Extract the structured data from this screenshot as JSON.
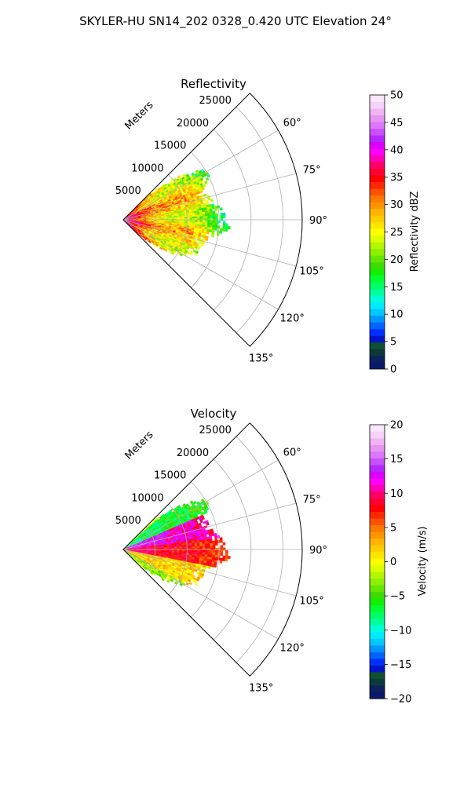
{
  "figure": {
    "suptitle": "SKYLER-HU  SN14_202  0328_0.420 UTC Elevation 24°"
  },
  "chart_data": [
    {
      "type": "heatmap",
      "projection": "polar-sector",
      "title": "Reflectivity",
      "radial_axis_label": "Meters",
      "radial_ticks": [
        5000,
        10000,
        15000,
        20000,
        25000
      ],
      "radial_tick_labels": [
        "5000",
        "10000",
        "15000",
        "20000",
        "25000"
      ],
      "rlim": [
        0,
        28000
      ],
      "azimuth_range_deg": [
        45,
        135
      ],
      "azimuth_ticks": [
        60,
        75,
        90,
        105,
        120,
        135
      ],
      "azimuth_tick_labels": [
        "60°",
        "75°",
        "90°",
        "105°",
        "120°",
        "135°"
      ],
      "grid": true,
      "colorbar": {
        "label": "Reflectivity dBZ",
        "range": [
          0,
          50
        ],
        "ticks": [
          0,
          5,
          10,
          15,
          20,
          25,
          30,
          35,
          40,
          45,
          50
        ],
        "tick_labels": [
          "0",
          "5",
          "10",
          "15",
          "20",
          "25",
          "30",
          "35",
          "40",
          "45",
          "50"
        ],
        "colors": [
          "#0a1a6b",
          "#0d2060",
          "#0c3a3a",
          "#0f4f34",
          "#0013c6",
          "#0030ff",
          "#0064ff",
          "#0096ff",
          "#00c8ff",
          "#00ebff",
          "#00ffd8",
          "#00ff9e",
          "#00ff64",
          "#00ff32",
          "#12f000",
          "#3cdc00",
          "#64e600",
          "#8cf000",
          "#b4f500",
          "#dcff00",
          "#ffff00",
          "#ffe600",
          "#ffcc00",
          "#ffb400",
          "#ff9600",
          "#ff7800",
          "#ff5000",
          "#ff2800",
          "#ff0000",
          "#ff0032",
          "#ff0064",
          "#ff00b4",
          "#ff00ff",
          "#dc00ff",
          "#b428ff",
          "#c850ff",
          "#dc78ff",
          "#e696f0",
          "#f0b4f5",
          "#f5d2fa",
          "#fae6fd"
        ]
      },
      "echo_extent_m_by_azimuth": [
        {
          "az": 46,
          "r": 6500
        },
        {
          "az": 50,
          "r": 9000
        },
        {
          "az": 54,
          "r": 12500
        },
        {
          "az": 58,
          "r": 14500
        },
        {
          "az": 62,
          "r": 15000
        },
        {
          "az": 66,
          "r": 14000
        },
        {
          "az": 70,
          "r": 13500
        },
        {
          "az": 75,
          "r": 13800
        },
        {
          "az": 80,
          "r": 14500
        },
        {
          "az": 85,
          "r": 15500
        },
        {
          "az": 90,
          "r": 16000
        },
        {
          "az": 95,
          "r": 16500
        },
        {
          "az": 100,
          "r": 14500
        },
        {
          "az": 105,
          "r": 13000
        },
        {
          "az": 110,
          "r": 12800
        },
        {
          "az": 115,
          "r": 12500
        },
        {
          "az": 120,
          "r": 11000
        },
        {
          "az": 125,
          "r": 9000
        },
        {
          "az": 130,
          "r": 6000
        },
        {
          "az": 134,
          "r": 3000
        }
      ],
      "value_range_observed": [
        12,
        42
      ]
    },
    {
      "type": "heatmap",
      "projection": "polar-sector",
      "title": "Velocity",
      "radial_axis_label": "Meters",
      "radial_ticks": [
        5000,
        10000,
        15000,
        20000,
        25000
      ],
      "radial_tick_labels": [
        "5000",
        "10000",
        "15000",
        "20000",
        "25000"
      ],
      "rlim": [
        0,
        28000
      ],
      "azimuth_range_deg": [
        45,
        135
      ],
      "azimuth_ticks": [
        60,
        75,
        90,
        105,
        120,
        135
      ],
      "azimuth_tick_labels": [
        "60°",
        "75°",
        "90°",
        "105°",
        "120°",
        "135°"
      ],
      "grid": true,
      "colorbar": {
        "label": "Velocity (m/s)",
        "range": [
          -20,
          20
        ],
        "ticks": [
          -20,
          -15,
          -10,
          -5,
          0,
          5,
          10,
          15,
          20
        ],
        "tick_labels": [
          "−20",
          "−15",
          "−10",
          "−5",
          "0",
          "5",
          "10",
          "15",
          "20"
        ],
        "colors": [
          "#0a1a6b",
          "#0d2060",
          "#0c3a3a",
          "#0f4f34",
          "#0013c6",
          "#0030ff",
          "#0064ff",
          "#0096ff",
          "#00c8ff",
          "#00ebff",
          "#00ffd8",
          "#00ff9e",
          "#00ff64",
          "#00ff32",
          "#12f000",
          "#3cdc00",
          "#64e600",
          "#8cf000",
          "#b4f500",
          "#dcff00",
          "#ffff00",
          "#ffe600",
          "#ffcc00",
          "#ffb400",
          "#ff9600",
          "#ff7800",
          "#ff5000",
          "#ff2800",
          "#ff0000",
          "#ff0032",
          "#ff0064",
          "#ff00b4",
          "#ff00ff",
          "#dc00ff",
          "#b428ff",
          "#c850ff",
          "#dc78ff",
          "#e696f0",
          "#f0b4f5",
          "#f5d2fa",
          "#fae6fd"
        ]
      },
      "echo_extent_m_by_azimuth": [
        {
          "az": 46,
          "r": 6500
        },
        {
          "az": 50,
          "r": 9000
        },
        {
          "az": 54,
          "r": 12500
        },
        {
          "az": 58,
          "r": 14500
        },
        {
          "az": 62,
          "r": 15000
        },
        {
          "az": 66,
          "r": 14000
        },
        {
          "az": 70,
          "r": 13500
        },
        {
          "az": 75,
          "r": 13800
        },
        {
          "az": 80,
          "r": 14500
        },
        {
          "az": 85,
          "r": 15500
        },
        {
          "az": 90,
          "r": 16000
        },
        {
          "az": 95,
          "r": 16500
        },
        {
          "az": 100,
          "r": 14500
        },
        {
          "az": 105,
          "r": 13000
        },
        {
          "az": 110,
          "r": 12800
        },
        {
          "az": 115,
          "r": 12500
        },
        {
          "az": 120,
          "r": 11000
        },
        {
          "az": 125,
          "r": 9000
        },
        {
          "az": 130,
          "r": 6000
        },
        {
          "az": 134,
          "r": 3000
        }
      ],
      "velocity_regions": [
        {
          "az_range": [
            48,
            66
          ],
          "r_range": [
            0,
            15000
          ],
          "value": -8
        },
        {
          "az_range": [
            66,
            82
          ],
          "r_range": [
            0,
            14000
          ],
          "value": 14
        },
        {
          "az_range": [
            82,
            100
          ],
          "r_range": [
            0,
            16000
          ],
          "value": 10
        },
        {
          "az_range": [
            100,
            118
          ],
          "r_range": [
            0,
            13000
          ],
          "value": 2
        },
        {
          "az_range": [
            118,
            134
          ],
          "r_range": [
            0,
            11000
          ],
          "value": -3
        }
      ],
      "value_range_observed": [
        -10,
        17
      ]
    }
  ]
}
